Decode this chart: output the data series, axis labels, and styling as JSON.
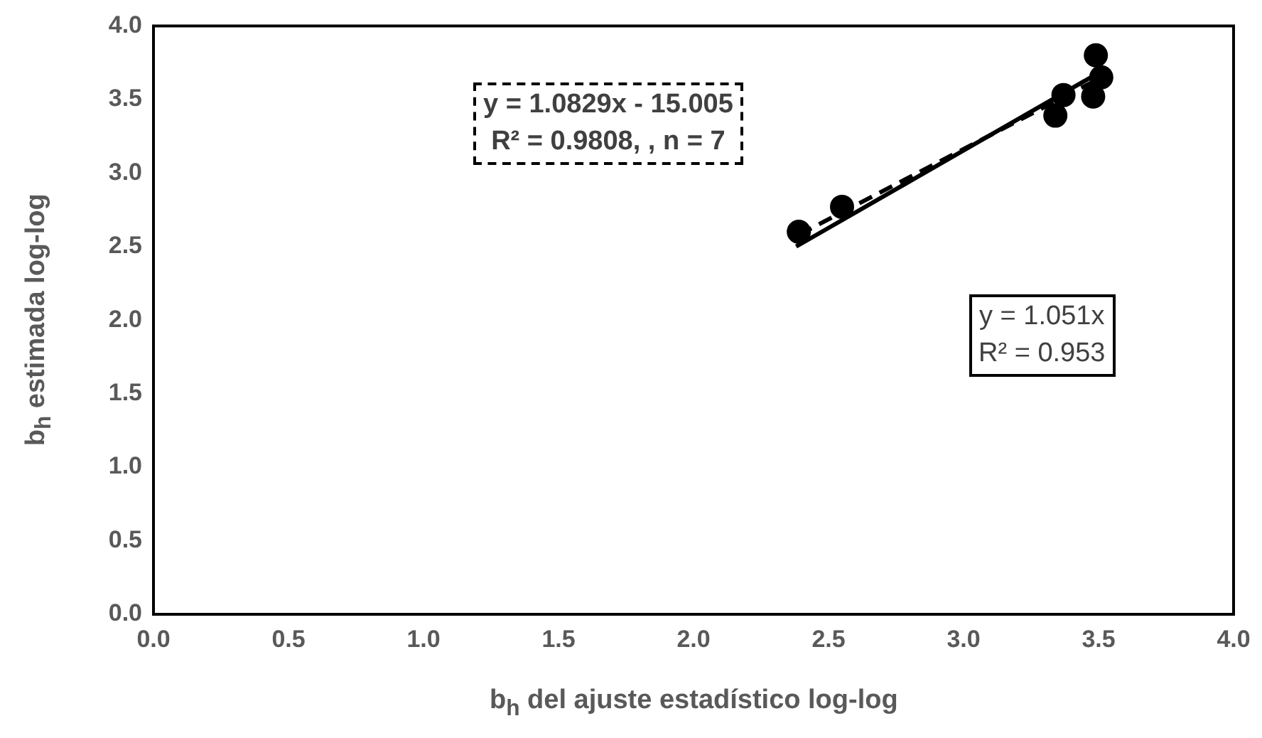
{
  "chart_data": {
    "type": "scatter",
    "xlabel": "b$_{h}$ del ajuste estadístico log-log",
    "ylabel": "b$_{h}$ estimada log-log",
    "series": [
      {
        "color": "#000000",
        "marker": "circle",
        "x": [
          2.39,
          2.55,
          3.34,
          3.37,
          3.49,
          3.51,
          3.48
        ],
        "values": [
          2.6,
          2.77,
          3.39,
          3.53,
          3.8,
          3.65,
          3.52
        ]
      },
      {
        "type": "line",
        "color": "#000000",
        "marker": "none",
        "line_style": "solid",
        "x": [
          2.38,
          3.5
        ],
        "values": [
          2.5,
          3.68
        ]
      },
      {
        "type": "line",
        "color": "#000000",
        "marker": "none",
        "line_style": "dashed",
        "x": [
          2.39,
          3.5
        ],
        "values": [
          2.58,
          3.64
        ]
      }
    ],
    "annotations": [
      "y = 1.0829x - 15.005\nR² = 0.9808, , n = 7",
      "y = 1.051x\nR² = 0.953"
    ],
    "xlim": [
      0,
      4
    ],
    "ylim": [
      0,
      4
    ],
    "xticks": [
      {
        "value": 0,
        "label": "0.0"
      },
      {
        "value": 0.5,
        "label": "0.5"
      },
      {
        "value": 1,
        "label": "1.0"
      },
      {
        "value": 1.5,
        "label": "1.5"
      },
      {
        "value": 2,
        "label": "2.0"
      },
      {
        "value": 2.5,
        "label": "2.5"
      },
      {
        "value": 3,
        "label": "3.0"
      },
      {
        "value": 3.5,
        "label": "3.5"
      },
      {
        "value": 4,
        "label": "4.0"
      }
    ],
    "yticks": [
      {
        "value": 0,
        "label": "0.0"
      },
      {
        "value": 0.5,
        "label": "0.5"
      },
      {
        "value": 1,
        "label": "1.0"
      },
      {
        "value": 1.5,
        "label": "1.5"
      },
      {
        "value": 2,
        "label": "2.0"
      },
      {
        "value": 2.5,
        "label": "2.5"
      },
      {
        "value": 3,
        "label": "3.0"
      },
      {
        "value": 3.5,
        "label": "3.5"
      },
      {
        "value": 4,
        "label": "4.0"
      }
    ],
    "grid": false,
    "legend": false
  }
}
